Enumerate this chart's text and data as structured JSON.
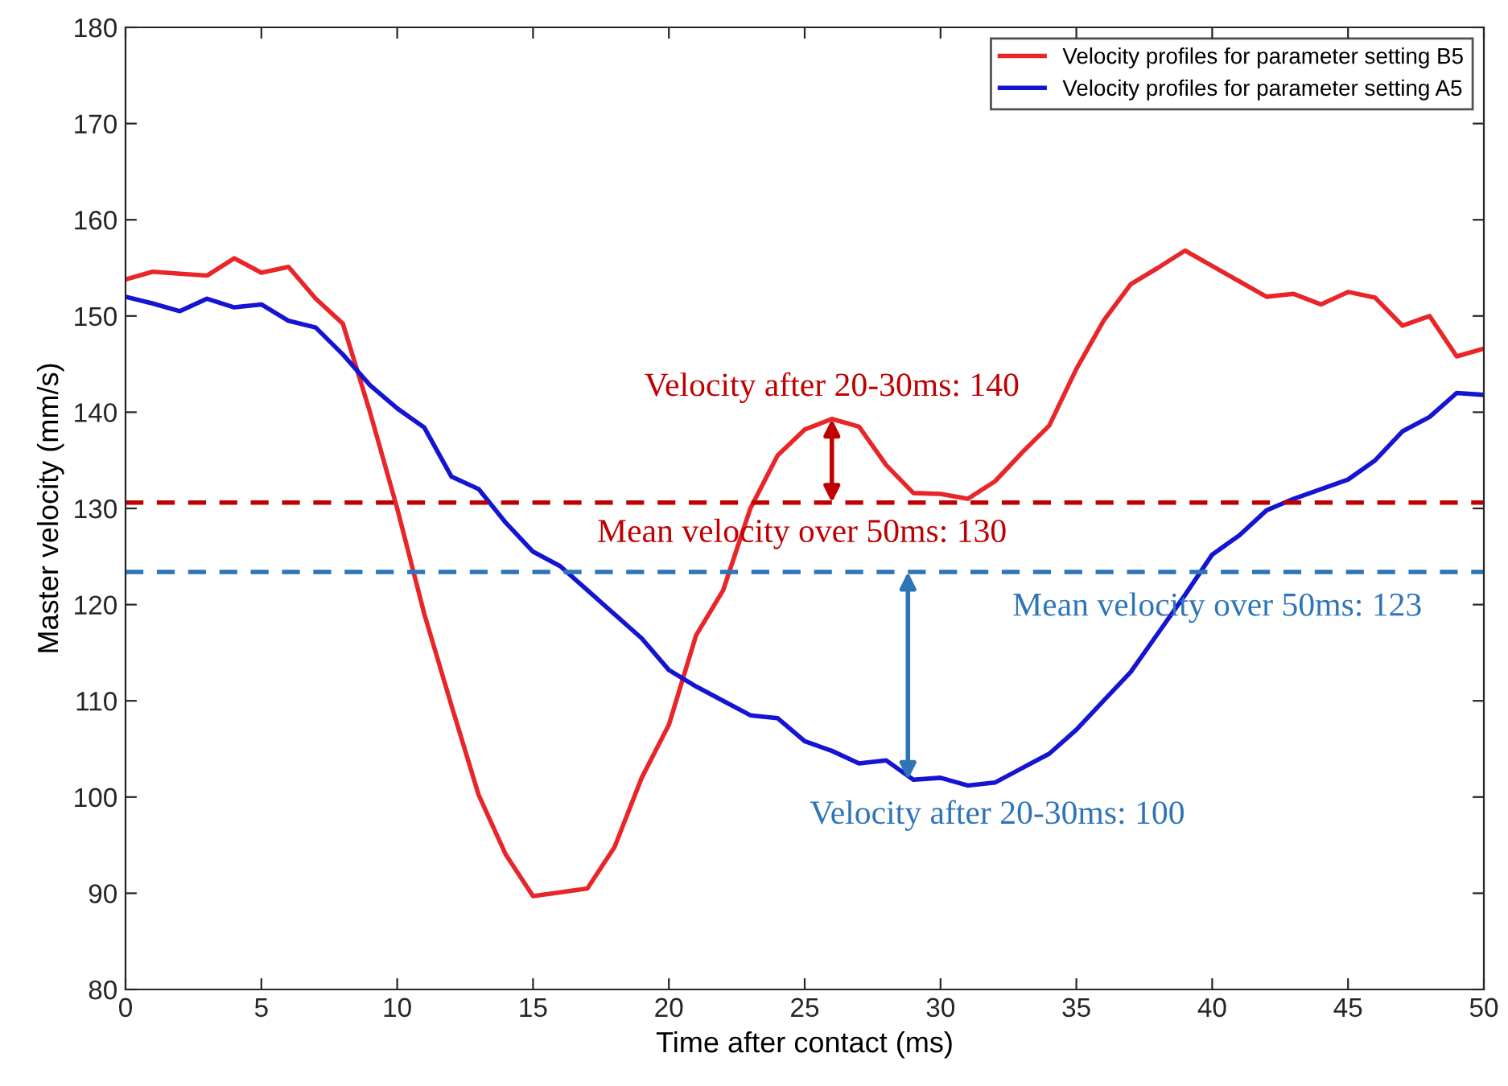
{
  "chart_data": {
    "type": "line",
    "xlabel": "Time after contact (ms)",
    "ylabel": "Master velocity (mm/s)",
    "x": [
      0,
      1,
      2,
      3,
      4,
      5,
      6,
      7,
      8,
      9,
      10,
      11,
      12,
      13,
      14,
      15,
      16,
      17,
      18,
      19,
      20,
      21,
      22,
      23,
      24,
      25,
      26,
      27,
      28,
      29,
      30,
      31,
      32,
      33,
      34,
      35,
      36,
      37,
      38,
      39,
      40,
      41,
      42,
      43,
      44,
      45,
      46,
      47,
      48,
      49,
      50
    ],
    "series": [
      {
        "name": "Velocity profiles for parameter setting B5",
        "color": "#e8262a",
        "values": [
          153.8,
          154.6,
          154.4,
          154.2,
          156,
          154.5,
          155.1,
          151.8,
          149.2,
          140,
          130,
          119,
          109.5,
          100.2,
          94,
          89.7,
          90.1,
          90.5,
          94.8,
          102,
          107.5,
          116.8,
          121.5,
          130,
          135.5,
          138.2,
          139.3,
          138.5,
          134.5,
          131.6,
          131.5,
          131,
          132.8,
          135.8,
          138.6,
          144.5,
          149.5,
          153.3,
          155,
          156.8,
          155.2,
          153.6,
          152,
          152.3,
          151.2,
          152.5,
          151.9,
          149,
          150,
          145.8,
          146.6
        ]
      },
      {
        "name": "Velocity profiles for parameter setting A5",
        "color": "#1414d2",
        "values": [
          152,
          151.3,
          150.5,
          151.8,
          150.9,
          151.2,
          149.5,
          148.8,
          146,
          142.8,
          140.4,
          138.4,
          133.3,
          132,
          128.5,
          125.5,
          124,
          121.5,
          119,
          116.5,
          113.2,
          111.5,
          110,
          108.5,
          108.2,
          105.8,
          104.8,
          103.5,
          103.8,
          101.8,
          102,
          101.2,
          101.5,
          103,
          104.5,
          107,
          110,
          113,
          117,
          121,
          125.2,
          127.2,
          129.8,
          131,
          132,
          133,
          135,
          138,
          139.5,
          142,
          141.8
        ]
      }
    ],
    "ref_lines": [
      {
        "axis": "y",
        "value": 130.6,
        "color": "#c00000",
        "line_style": "dashed"
      },
      {
        "axis": "y",
        "value": 123.4,
        "color": "#2e75b6",
        "line_style": "dashed"
      }
    ],
    "annotations": [
      {
        "text": "Velocity after 20-30ms: 140",
        "x": 26,
        "y": 139.3
      },
      {
        "text": "Mean velocity over 50ms: 130",
        "x": 24.9,
        "y": 130.6
      },
      {
        "text": "Mean velocity over 50ms: 123",
        "x": 39.2,
        "y": 123.4
      },
      {
        "text": "Velocity after 20-30ms: 100",
        "x": 28.8,
        "y": 101.8
      }
    ],
    "xlim": [
      0,
      50
    ],
    "ylim": [
      80,
      180
    ],
    "xticks": [
      0,
      5,
      10,
      15,
      20,
      25,
      30,
      35,
      40,
      45,
      50
    ],
    "yticks": [
      80,
      90,
      100,
      110,
      120,
      130,
      140,
      150,
      160,
      170,
      180
    ],
    "grid": false,
    "legend": "top right",
    "marker": "none",
    "line_style": "solid"
  }
}
